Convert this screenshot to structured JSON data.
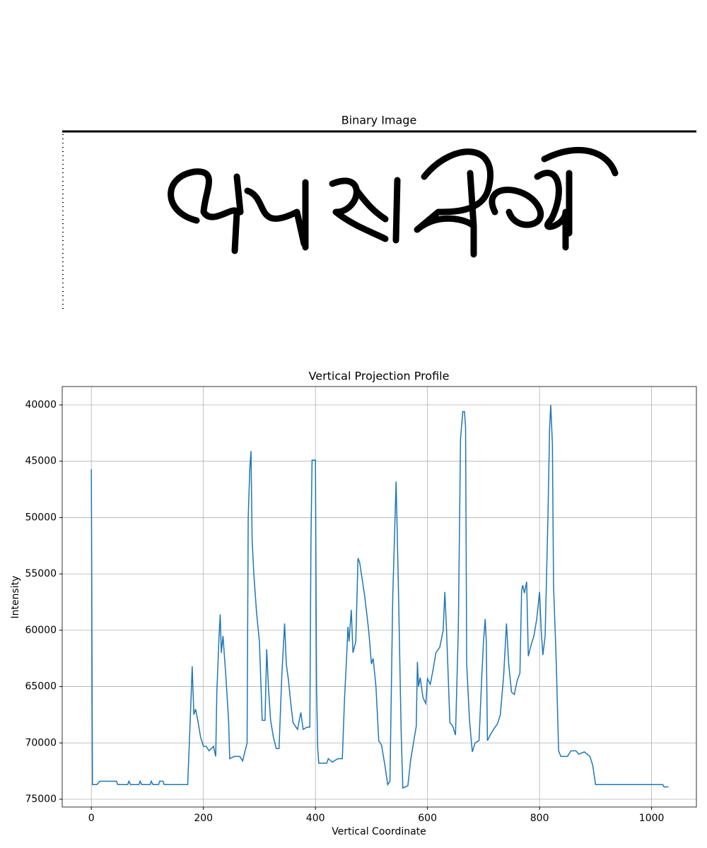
{
  "chart_data": [
    {
      "type": "image",
      "title": "Binary Image"
    },
    {
      "type": "line",
      "title": "Vertical Projection Profile",
      "x_label": "Vertical Coordinate",
      "y_label": "Intensity",
      "color": "#1f77b4",
      "grid": true,
      "xlim": [
        -52,
        1080
      ],
      "xticks": [
        0,
        200,
        400,
        600,
        800,
        1000
      ],
      "ylim": [
        75690,
        38370
      ],
      "yticks": [
        40000,
        45000,
        50000,
        55000,
        60000,
        65000,
        70000,
        75000
      ],
      "x": [
        0,
        2,
        10,
        15,
        45,
        47,
        65,
        67,
        70,
        85,
        87,
        90,
        105,
        107,
        110,
        120,
        122,
        128,
        130,
        172,
        178,
        180,
        183,
        186,
        190,
        195,
        200,
        205,
        210,
        218,
        222,
        224,
        228,
        230,
        232,
        235,
        240,
        245,
        247,
        255,
        265,
        270,
        278,
        280,
        283,
        285,
        287,
        290,
        295,
        300,
        305,
        310,
        313,
        316,
        320,
        325,
        330,
        335,
        340,
        345,
        348,
        352,
        356,
        360,
        368,
        374,
        378,
        385,
        390,
        392,
        394,
        400,
        402,
        404,
        406,
        420,
        423,
        430,
        440,
        448,
        452,
        456,
        458,
        460,
        464,
        467,
        472,
        476,
        479,
        482,
        488,
        495,
        500,
        503,
        508,
        513,
        518,
        524,
        529,
        533,
        538,
        544,
        548,
        553,
        556,
        565,
        570,
        575,
        580,
        582,
        584,
        587,
        592,
        597,
        600,
        605,
        610,
        615,
        622,
        628,
        631,
        634,
        640,
        645,
        650,
        655,
        659,
        663,
        666,
        668,
        670,
        675,
        680,
        685,
        692,
        697,
        700,
        703,
        705,
        707,
        712,
        718,
        725,
        730,
        736,
        741,
        745,
        750,
        755,
        760,
        765,
        768,
        770,
        773,
        777,
        780,
        785,
        790,
        795,
        800,
        803,
        806,
        810,
        815,
        818,
        820,
        823,
        825,
        830,
        834,
        838,
        850,
        856,
        865,
        870,
        880,
        890,
        895,
        900,
        1020,
        1022,
        1030
      ],
      "values": [
        45700,
        73700,
        73700,
        73400,
        73400,
        73700,
        73700,
        73400,
        73700,
        73700,
        73400,
        73700,
        73700,
        73400,
        73700,
        73700,
        73400,
        73400,
        73700,
        73700,
        66000,
        63200,
        67500,
        67000,
        68000,
        69500,
        70300,
        70300,
        70700,
        70300,
        71200,
        65500,
        60500,
        58600,
        62000,
        60500,
        64000,
        68000,
        71400,
        71200,
        71200,
        71600,
        70000,
        50000,
        45500,
        44100,
        52000,
        55000,
        58500,
        61000,
        68000,
        68000,
        61700,
        65000,
        68000,
        69500,
        70500,
        70500,
        64000,
        59400,
        63000,
        64500,
        66500,
        68200,
        68800,
        67300,
        68800,
        68600,
        68600,
        52000,
        44900,
        44900,
        65000,
        70500,
        71800,
        71800,
        71400,
        71700,
        71400,
        71400,
        66000,
        62000,
        59700,
        61000,
        58200,
        62000,
        61000,
        53600,
        54000,
        55000,
        57000,
        60000,
        63000,
        62500,
        65000,
        69800,
        70200,
        72000,
        73700,
        73400,
        57000,
        46800,
        56000,
        69000,
        74000,
        73800,
        71500,
        70000,
        68500,
        62800,
        65000,
        64200,
        66000,
        66500,
        64300,
        64800,
        63500,
        62000,
        61500,
        60000,
        56600,
        60000,
        68200,
        68500,
        69300,
        60000,
        43000,
        40600,
        40600,
        42000,
        63000,
        68000,
        70800,
        70000,
        69800,
        64000,
        61000,
        59000,
        61000,
        69800,
        69300,
        68800,
        68300,
        67500,
        64000,
        59400,
        63000,
        65500,
        65700,
        64500,
        63800,
        56500,
        56000,
        56700,
        55700,
        62300,
        61300,
        60500,
        59000,
        56600,
        60000,
        62200,
        60500,
        50000,
        42000,
        40000,
        43500,
        56000,
        63000,
        70700,
        71200,
        71200,
        70700,
        70700,
        71000,
        70800,
        71200,
        72000,
        73700,
        73700,
        73900,
        73900
      ]
    }
  ]
}
